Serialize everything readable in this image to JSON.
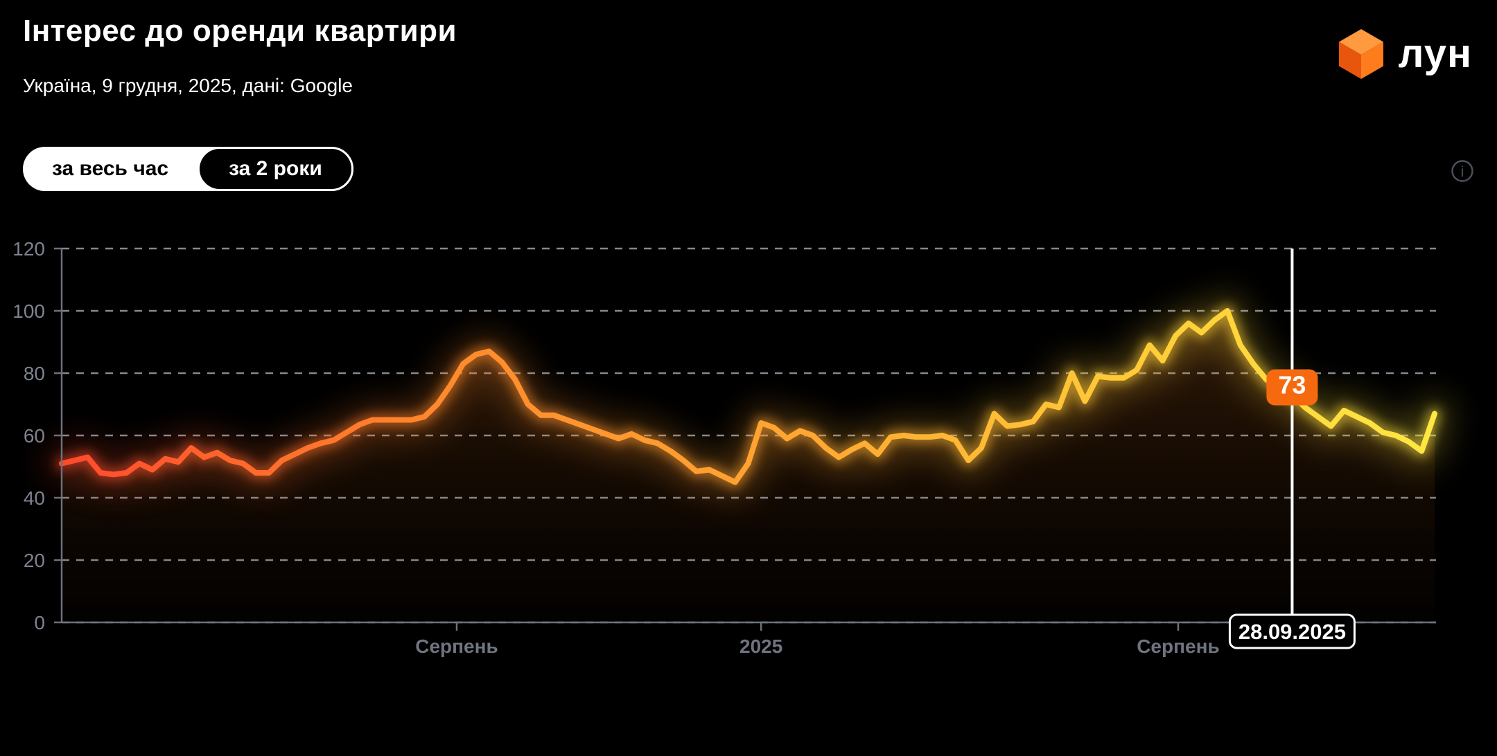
{
  "header": {
    "title": "Інтерес до оренди квартири",
    "subtitle": "Україна, 9 грудня, 2025, дані: Google"
  },
  "logo": {
    "text": "лун",
    "cube_colors": {
      "top": "#ff9a3e",
      "left": "#e8560e",
      "right": "#ff7c1d"
    }
  },
  "controls": {
    "options": [
      {
        "label": "за весь час",
        "selected": false
      },
      {
        "label": "за 2 роки",
        "selected": true
      }
    ]
  },
  "info_tooltip": {
    "icon": "i"
  },
  "chart_data": {
    "type": "line",
    "title": "Інтерес до оренди квартири",
    "source": "Google",
    "ylim": [
      0,
      120
    ],
    "y_ticks": [
      0,
      20,
      40,
      60,
      80,
      100,
      120
    ],
    "x_ticks": [
      {
        "label": "Серпень",
        "index": 30.5
      },
      {
        "label": "2025",
        "index": 54
      },
      {
        "label": "Серпень",
        "index": 86.2
      }
    ],
    "values": [
      51,
      52,
      53,
      48,
      47.5,
      48,
      51,
      49,
      52.5,
      51.5,
      56,
      53,
      54.5,
      52,
      51,
      48,
      48,
      52,
      54,
      56,
      57.5,
      58.5,
      61,
      63.5,
      65,
      65,
      65,
      65,
      66,
      70,
      76,
      83,
      86,
      87,
      83.5,
      78,
      70,
      66.5,
      66.5,
      65,
      63.5,
      62,
      60.5,
      59,
      60.5,
      58.5,
      57.5,
      55,
      52,
      48.5,
      49,
      47,
      45,
      51,
      64,
      62.5,
      59,
      61.5,
      60,
      56,
      53,
      55.5,
      57.5,
      54,
      59.5,
      60,
      59.5,
      59.5,
      60,
      58.5,
      52,
      56,
      67,
      63,
      63.5,
      64.5,
      70,
      69,
      80,
      71,
      79,
      78.5,
      78.5,
      81,
      89,
      84,
      92,
      96,
      93,
      97,
      100,
      89,
      83,
      78,
      75,
      73,
      69,
      66,
      63,
      68,
      66,
      64,
      61,
      60,
      58,
      55,
      67
    ],
    "marker": {
      "index": 95,
      "value": 73,
      "date": "28.09.2025"
    },
    "line_gradient": [
      {
        "offset": 0,
        "color": "#ff4a2d"
      },
      {
        "offset": 0.28,
        "color": "#ff8a2c"
      },
      {
        "offset": 0.55,
        "color": "#ffa832"
      },
      {
        "offset": 0.8,
        "color": "#ffce38"
      },
      {
        "offset": 1,
        "color": "#ffe843"
      }
    ],
    "marker_badge_color": "#f7690f",
    "grid_color": "#9aa0ac",
    "axis_color": "#6c717d",
    "y_label_color": "#7e8390",
    "x_label_color": "#6f7480",
    "grid": "dashed-horizontal",
    "legend_position": "none"
  }
}
